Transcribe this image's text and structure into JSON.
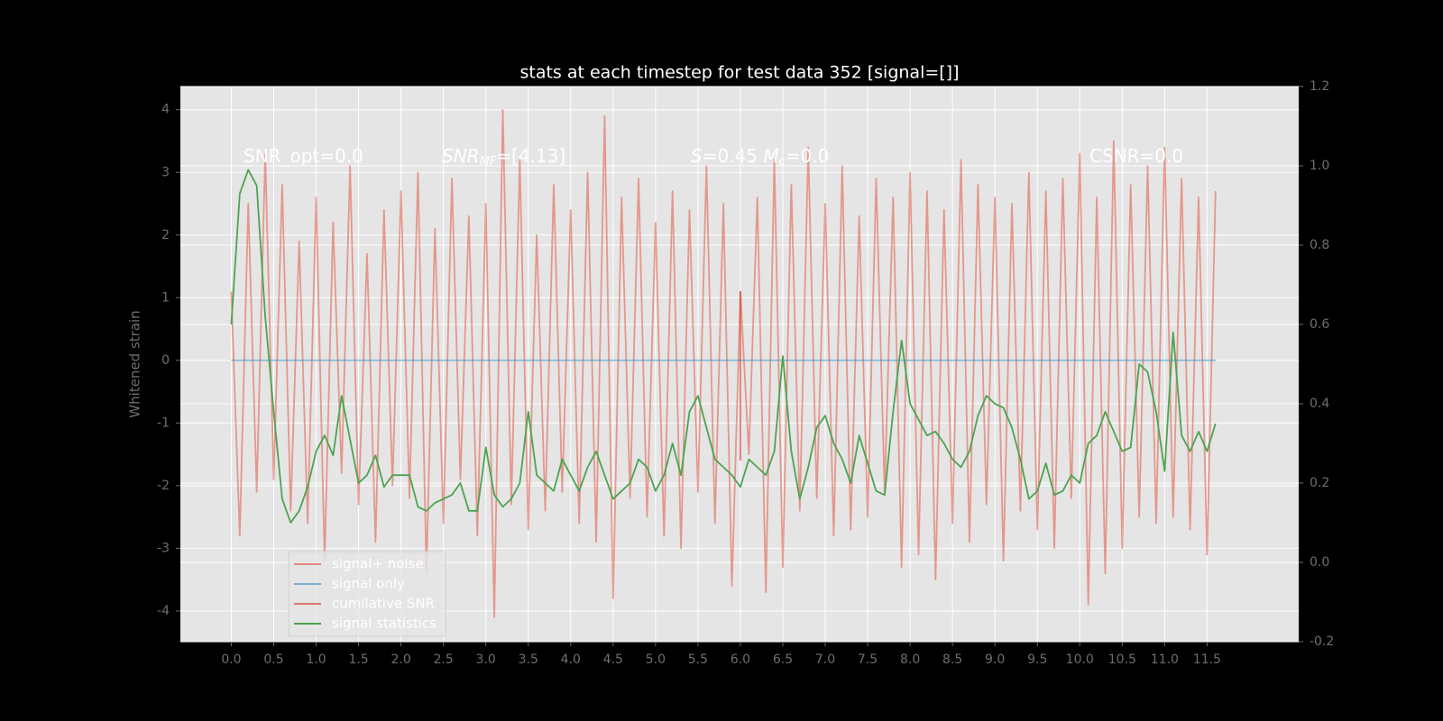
{
  "chart_data": {
    "type": "line",
    "title": "stats at each timestep for test data 352 [signal=[]]",
    "y_label": "Whitened strain",
    "annotations": [
      [
        {
          "text": "SNR_opt=0.0"
        }
      ],
      [
        {
          "text": "SNR",
          "italic": true
        },
        {
          "text": "MF",
          "italic": true,
          "sub": true
        },
        {
          "text": "=[4.13]"
        }
      ],
      [
        {
          "text": "S",
          "italic": true
        },
        {
          "text": "=0.45   "
        },
        {
          "text": "M",
          "italic": true
        },
        {
          "text": "c",
          "italic": true,
          "sub": true
        },
        {
          "text": "=0.0"
        }
      ],
      [
        {
          "text": "CSNR=0.0"
        }
      ]
    ],
    "x": [
      0.0,
      0.1,
      0.2,
      0.3,
      0.4,
      0.5,
      0.6,
      0.7,
      0.8,
      0.9,
      1.0,
      1.1,
      1.2,
      1.3,
      1.4,
      1.5,
      1.6,
      1.7,
      1.8,
      1.9,
      2.0,
      2.1,
      2.2,
      2.3,
      2.4,
      2.5,
      2.6,
      2.7,
      2.8,
      2.9,
      3.0,
      3.1,
      3.2,
      3.3,
      3.4,
      3.5,
      3.6,
      3.7,
      3.8,
      3.9,
      4.0,
      4.1,
      4.2,
      4.3,
      4.4,
      4.5,
      4.6,
      4.7,
      4.8,
      4.9,
      5.0,
      5.1,
      5.2,
      5.3,
      5.4,
      5.5,
      5.6,
      5.7,
      5.8,
      5.9,
      6.0,
      6.1,
      6.2,
      6.3,
      6.4,
      6.5,
      6.6,
      6.7,
      6.8,
      6.9,
      7.0,
      7.1,
      7.2,
      7.3,
      7.4,
      7.5,
      7.6,
      7.7,
      7.8,
      7.9,
      8.0,
      8.1,
      8.2,
      8.3,
      8.4,
      8.5,
      8.6,
      8.7,
      8.8,
      8.9,
      9.0,
      9.1,
      9.2,
      9.3,
      9.4,
      9.5,
      9.6,
      9.7,
      9.8,
      9.9,
      10.0,
      10.1,
      10.2,
      10.3,
      10.4,
      10.5,
      10.6,
      10.7,
      10.8,
      10.9,
      11.0,
      11.1,
      11.2,
      11.3,
      11.4,
      11.5,
      11.6
    ],
    "series": [
      {
        "name": "signal+ noise",
        "color": "#e24a33",
        "opacity": 0.5,
        "values": [
          1.1,
          -2.8,
          2.5,
          -2.1,
          3.3,
          -1.9,
          2.8,
          -2.4,
          1.9,
          -2.6,
          2.6,
          -3.2,
          2.2,
          -1.8,
          3.1,
          -2.3,
          1.7,
          -2.9,
          2.4,
          -2.0,
          2.7,
          -2.2,
          3.0,
          -3.4,
          2.1,
          -2.6,
          2.9,
          -1.9,
          2.3,
          -2.8,
          2.5,
          -4.1,
          4.0,
          -2.3,
          3.2,
          -2.7,
          2.0,
          -2.4,
          2.8,
          -2.1,
          2.4,
          -2.6,
          3.0,
          -2.9,
          3.9,
          -3.8,
          2.6,
          -2.2,
          2.9,
          -2.5,
          2.2,
          -2.8,
          2.7,
          -3.0,
          2.4,
          -2.1,
          3.1,
          -2.6,
          2.5,
          -3.6,
          1.1,
          -1.5,
          2.6,
          -3.7,
          3.2,
          -3.3,
          2.8,
          -2.4,
          3.4,
          -2.2,
          2.5,
          -2.8,
          3.1,
          -2.7,
          2.3,
          -2.5,
          2.9,
          -2.1,
          2.6,
          -3.3,
          3.0,
          -3.1,
          2.7,
          -3.5,
          2.4,
          -2.6,
          3.2,
          -2.9,
          2.8,
          -2.3,
          2.6,
          -3.2,
          2.5,
          -2.4,
          3.0,
          -2.7,
          2.7,
          -3.0,
          2.9,
          -2.2,
          3.3,
          -3.9,
          2.6,
          -3.4,
          3.5,
          -3.0,
          2.8,
          -2.5,
          3.1,
          -2.6,
          3.4,
          -2.5,
          2.9,
          -2.7,
          2.6,
          -3.1,
          2.7
        ]
      },
      {
        "name": "signal only",
        "color": "#348abd",
        "opacity": 0.5,
        "x": [
          0.0,
          11.6
        ],
        "values": [
          0,
          0
        ]
      },
      {
        "name": "cumilative SNR",
        "color": "#d62c1a",
        "opacity": 0.6,
        "x": [
          6.0,
          6.0
        ],
        "values": [
          1.1,
          -1.6
        ]
      },
      {
        "name": "signal statistics",
        "color": "#4da350",
        "opacity": 1,
        "axis": "y2",
        "values": [
          0.6,
          0.93,
          0.99,
          0.95,
          0.62,
          0.38,
          0.16,
          0.1,
          0.13,
          0.19,
          0.28,
          0.32,
          0.27,
          0.42,
          0.31,
          0.2,
          0.22,
          0.27,
          0.19,
          0.22,
          0.22,
          0.22,
          0.14,
          0.13,
          0.15,
          0.16,
          0.17,
          0.2,
          0.13,
          0.13,
          0.29,
          0.17,
          0.14,
          0.16,
          0.2,
          0.38,
          0.22,
          0.2,
          0.18,
          0.26,
          0.22,
          0.18,
          0.24,
          0.28,
          0.22,
          0.16,
          0.18,
          0.2,
          0.26,
          0.24,
          0.18,
          0.22,
          0.3,
          0.22,
          0.38,
          0.42,
          0.34,
          0.26,
          0.24,
          0.22,
          0.19,
          0.26,
          0.24,
          0.22,
          0.28,
          0.52,
          0.28,
          0.16,
          0.24,
          0.34,
          0.37,
          0.3,
          0.26,
          0.2,
          0.32,
          0.25,
          0.18,
          0.17,
          0.38,
          0.56,
          0.4,
          0.36,
          0.32,
          0.33,
          0.3,
          0.26,
          0.24,
          0.28,
          0.37,
          0.42,
          0.4,
          0.39,
          0.34,
          0.26,
          0.16,
          0.18,
          0.25,
          0.17,
          0.18,
          0.22,
          0.2,
          0.3,
          0.32,
          0.38,
          0.33,
          0.28,
          0.29,
          0.5,
          0.48,
          0.38,
          0.23,
          0.58,
          0.32,
          0.28,
          0.33,
          0.28,
          0.35
        ]
      }
    ],
    "xlim": [
      -0.6,
      12.58
    ],
    "xticks": [
      {
        "value": 0,
        "label": "0.0"
      },
      0.5,
      {
        "value": 1,
        "label": "1.0"
      },
      1.5,
      {
        "value": 2,
        "label": "2.0"
      },
      2.5,
      {
        "value": 3,
        "label": "3.0"
      },
      3.5,
      {
        "value": 4,
        "label": "4.0"
      },
      4.5,
      {
        "value": 5,
        "label": "5.0"
      },
      5.5,
      {
        "value": 6,
        "label": "6.0"
      },
      6.5,
      {
        "value": 7,
        "label": "7.0"
      },
      7.5,
      {
        "value": 8,
        "label": "8.0"
      },
      8.5,
      {
        "value": 9,
        "label": "9.0"
      },
      9.5,
      {
        "value": 10,
        "label": "10.0"
      },
      10.5,
      {
        "value": 11,
        "label": "11.0"
      },
      11.5
    ],
    "ylim": [
      -4.49,
      4.37
    ],
    "yticks": [
      -4,
      -3,
      -2,
      -1,
      0,
      1,
      2,
      3,
      4
    ],
    "y2lim": [
      -0.2,
      1.2
    ],
    "y2ticks": [
      -0.2,
      {
        "value": 0,
        "label": "0.0"
      },
      0.2,
      0.4,
      0.6,
      0.8,
      {
        "value": 1,
        "label": "1.0"
      },
      1.2
    ],
    "grid": true,
    "legend": "lower left"
  }
}
